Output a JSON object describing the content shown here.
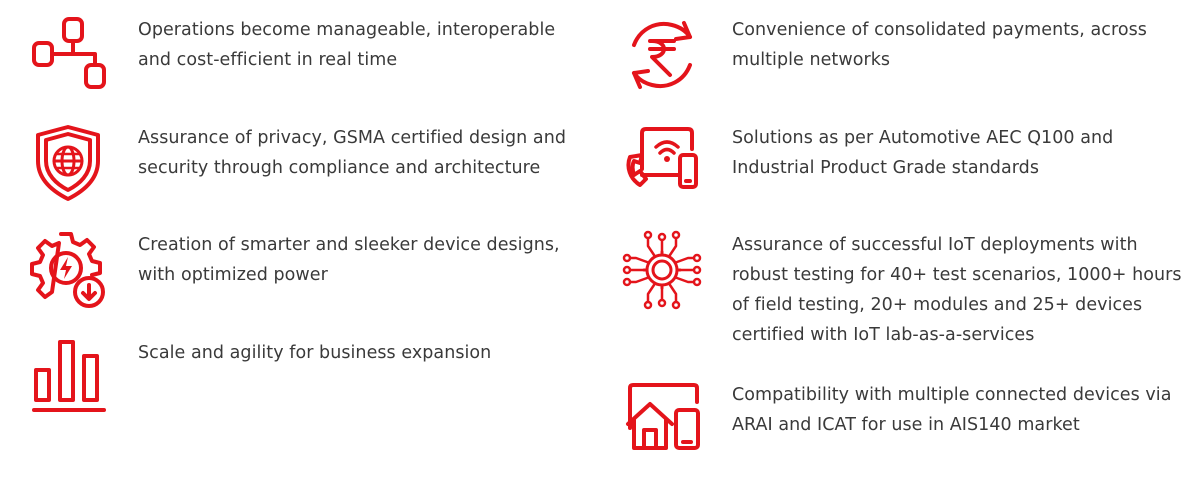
{
  "accent_color": "#e4141b",
  "text_color": "#3a3a3a",
  "features_left": [
    {
      "icon": "flowchart-icon",
      "lines": [
        "Operations become manageable, interoperable",
        "and cost-efficient in real time"
      ]
    },
    {
      "icon": "shield-globe-icon",
      "lines": [
        "Assurance of privacy, GSMA certified design and",
        "security through compliance and architecture"
      ]
    },
    {
      "icon": "power-gear-icon",
      "lines": [
        "Creation of smarter and sleeker device designs,",
        "with optimized power"
      ]
    },
    {
      "icon": "bar-chart-icon",
      "lines": [
        "Scale and agility for business expansion"
      ]
    }
  ],
  "features_right": [
    {
      "icon": "rupee-cycle-icon",
      "lines": [
        "Convenience of consolidated payments, across",
        "multiple networks"
      ]
    },
    {
      "icon": "connected-devices-icon",
      "lines": [
        "Solutions as per Automotive AEC Q100 and",
        "Industrial Product Grade standards"
      ]
    },
    {
      "icon": "iot-gear-network-icon",
      "lines": [
        "Assurance of successful IoT deployments with",
        "robust testing for 40+ test scenarios, 1000+ hours",
        "of field testing, 20+ modules and 25+ devices",
        "certified with IoT lab-as-a-services"
      ]
    },
    {
      "icon": "home-device-icon",
      "lines": [
        "Compatibility with multiple connected devices via",
        "ARAI and ICAT for use in AIS140 market"
      ]
    }
  ]
}
